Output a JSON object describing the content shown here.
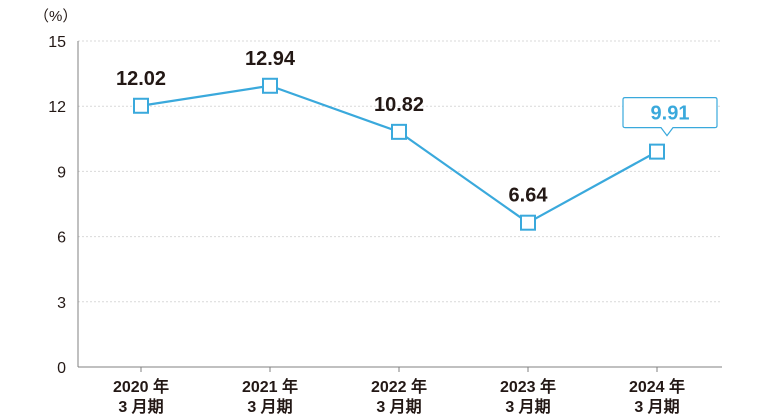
{
  "chart_data": {
    "type": "line",
    "ylabel": "（%）",
    "ylim": [
      0,
      15
    ],
    "yticks": [
      "0",
      "3",
      "6",
      "9",
      "12",
      "15"
    ],
    "categories": [
      [
        "2020 年",
        "3 月期"
      ],
      [
        "2021 年",
        "3 月期"
      ],
      [
        "2022 年",
        "3 月期"
      ],
      [
        "2023 年",
        "3 月期"
      ],
      [
        "2024 年",
        "3 月期"
      ]
    ],
    "series": [
      {
        "values": [
          12.02,
          12.94,
          10.82,
          6.64,
          9.91
        ],
        "labels": [
          "12.02",
          "12.94",
          "10.82",
          "6.64",
          "9.91"
        ]
      }
    ],
    "highlight_index": 4,
    "grid": true,
    "colors": {
      "line": "#3aa9dc",
      "marker_fill": "#ffffff",
      "grid": "#d9d9d9",
      "axis": "#808080",
      "text": "#231815",
      "highlight_text": "#3aa9dc"
    }
  }
}
